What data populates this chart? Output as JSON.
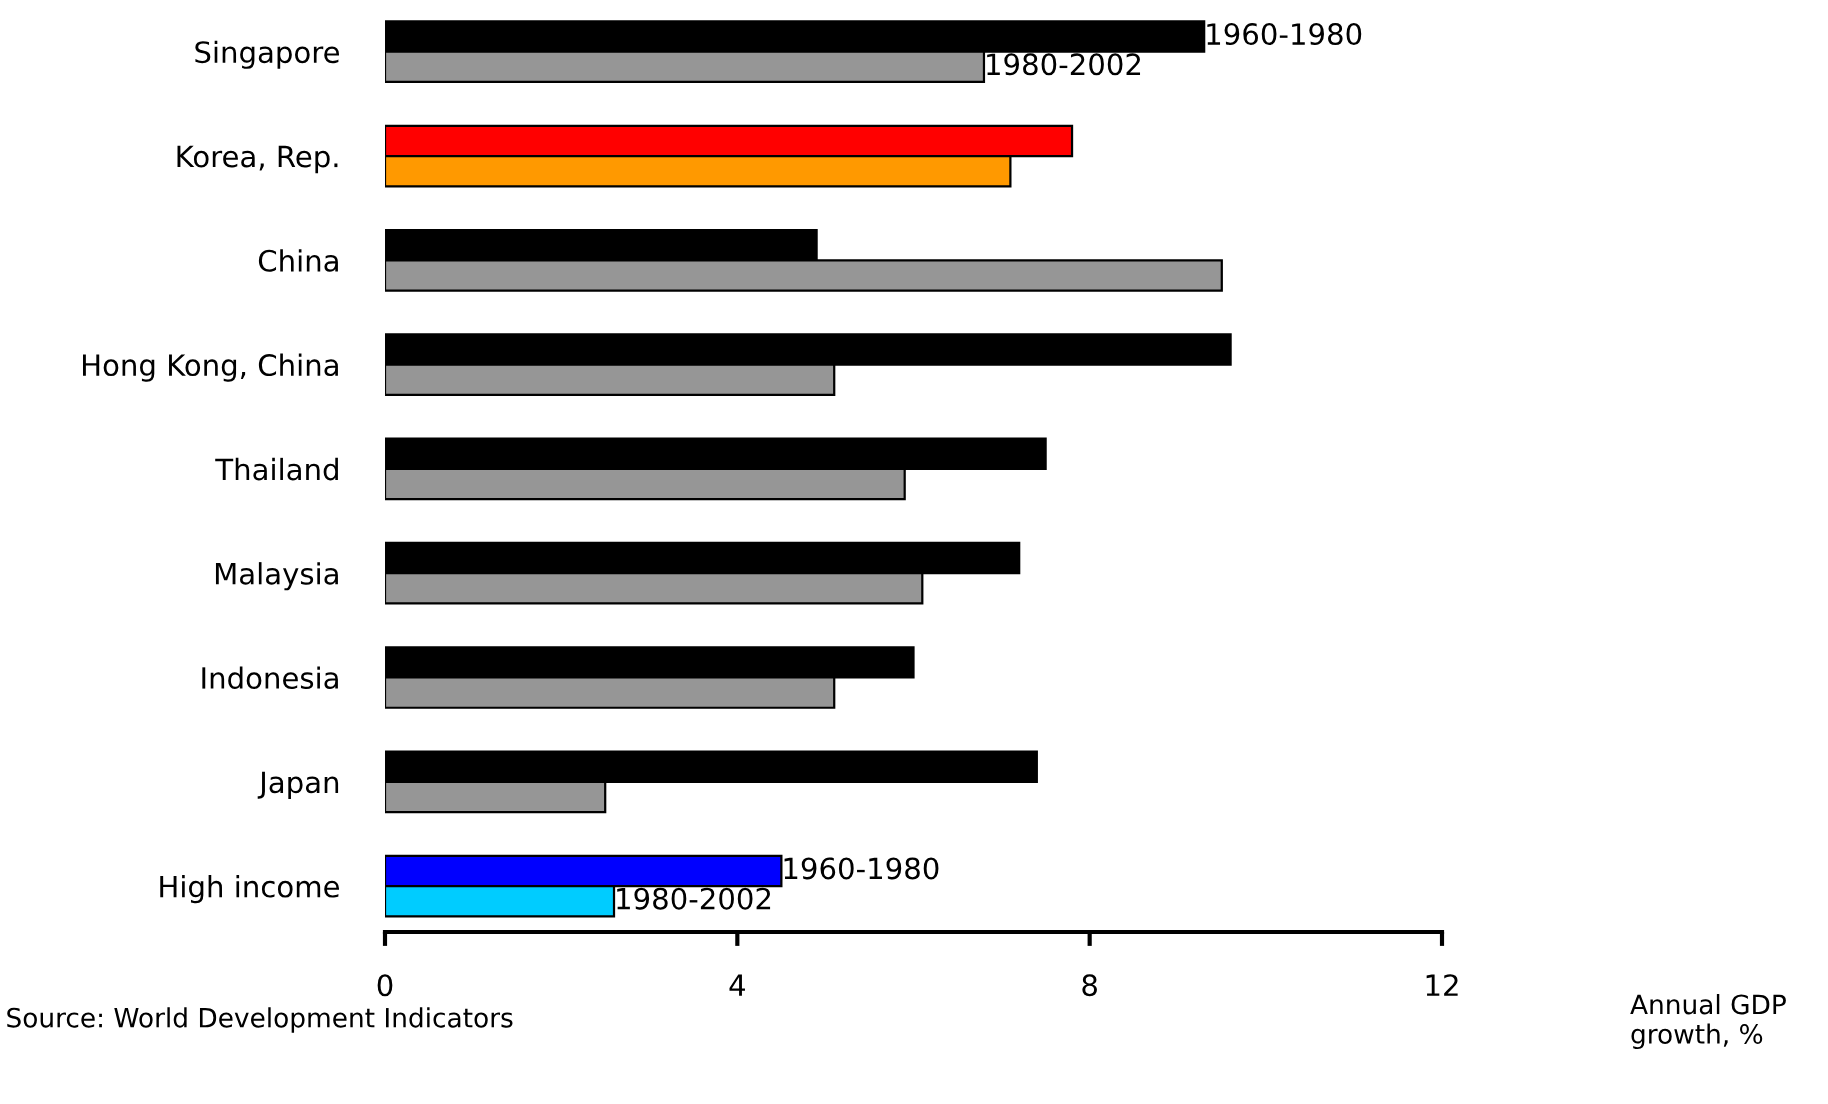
{
  "chart_data": {
    "type": "bar",
    "orientation": "horizontal",
    "categories": [
      "Singapore",
      "Korea, Rep.",
      "China",
      "Hong Kong, China",
      "Thailand",
      "Malaysia",
      "Indonesia",
      "Japan",
      "High income"
    ],
    "series": [
      {
        "colors": [
          "#000000",
          "#ff0000",
          "#000000",
          "#000000",
          "#000000",
          "#000000",
          "#000000",
          "#000000",
          "#0000ff"
        ],
        "values": [
          9.3,
          7.8,
          4.9,
          9.6,
          7.5,
          7.2,
          6.0,
          7.4,
          4.5
        ]
      },
      {
        "colors": [
          "#969696",
          "#ff9900",
          "#969696",
          "#969696",
          "#969696",
          "#969696",
          "#969696",
          "#969696",
          "#00ccff"
        ],
        "values": [
          6.8,
          7.1,
          9.5,
          5.1,
          5.9,
          6.1,
          5.1,
          2.5,
          2.6
        ]
      }
    ],
    "xlim": [
      0,
      12
    ],
    "xticks": [
      0,
      4,
      8,
      12
    ],
    "annotations": [
      {
        "text": "1960-1980",
        "x": 9.3,
        "y": "Singapore"
      },
      {
        "text": "1980-2002",
        "x": 6.8,
        "y": "Singapore"
      },
      {
        "text": "1960-1980",
        "x": 4.5,
        "y": "High income"
      },
      {
        "text": "1980-2002",
        "x": 2.6,
        "y": "High income"
      },
      "Source: World Development Indicators",
      "Annual GDP\ngrowth, %"
    ],
    "grid": false
  }
}
